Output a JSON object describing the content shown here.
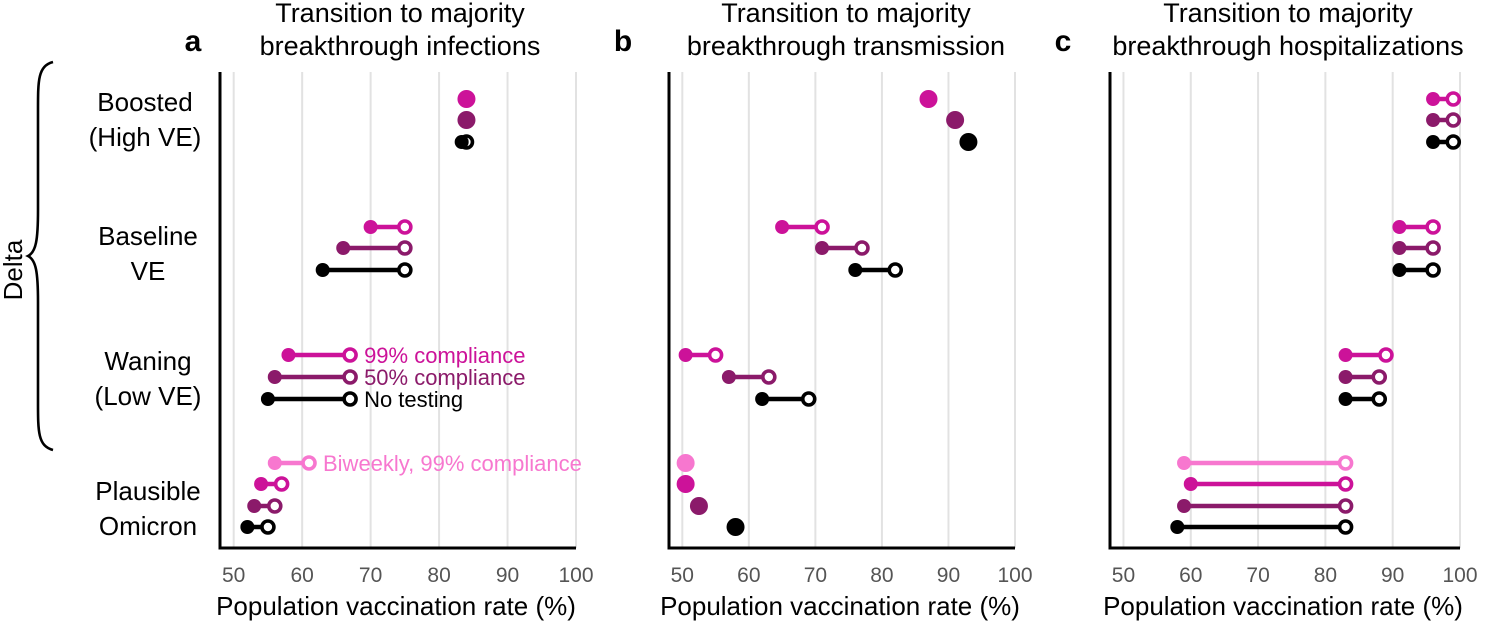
{
  "colors": {
    "c99": "#cc1299",
    "c50": "#8b1a6a",
    "c0": "#000000",
    "cbw": "#f777cf",
    "grid": "#e2e2e2",
    "tick": "#555555"
  },
  "group_axis_label": "Delta",
  "chart_data": [
    {
      "type": "dumbbell",
      "panel": "a",
      "title_line1": "Transition to majority",
      "title_line2": "breakthrough infections",
      "xlabel": "Population vaccination rate (%)",
      "xlim": [
        48,
        100
      ],
      "xticks": [
        50,
        60,
        70,
        80,
        90,
        100
      ],
      "groups": [
        {
          "label_line1": "Boosted",
          "label_line2": "(High VE)",
          "in_delta": true,
          "rows": [
            {
              "series": "99% compliance",
              "color": "c99",
              "from": 84,
              "to": 84
            },
            {
              "series": "50% compliance",
              "color": "c50",
              "from": 84,
              "to": 84
            },
            {
              "series": "No testing",
              "color": "c0",
              "from": 83.3,
              "to": 84
            }
          ]
        },
        {
          "label_line1": "Baseline",
          "label_line2": "VE",
          "in_delta": true,
          "rows": [
            {
              "series": "99% compliance",
              "color": "c99",
              "from": 70,
              "to": 75
            },
            {
              "series": "50% compliance",
              "color": "c50",
              "from": 66,
              "to": 75
            },
            {
              "series": "No testing",
              "color": "c0",
              "from": 63,
              "to": 75
            }
          ]
        },
        {
          "label_line1": "Waning",
          "label_line2": "(Low VE)",
          "in_delta": true,
          "rows": [
            {
              "series": "99% compliance",
              "color": "c99",
              "from": 58,
              "to": 67,
              "label": "99% compliance"
            },
            {
              "series": "50% compliance",
              "color": "c50",
              "from": 56,
              "to": 67,
              "label": "50% compliance"
            },
            {
              "series": "No testing",
              "color": "c0",
              "from": 55,
              "to": 67,
              "label": "No testing"
            }
          ]
        },
        {
          "label_line1": "Plausible",
          "label_line2": "Omicron",
          "in_delta": false,
          "rows": [
            {
              "series": "Biweekly, 99% compliance",
              "color": "cbw",
              "from": 56,
              "to": 61,
              "label": "Biweekly, 99% compliance"
            },
            {
              "series": "99% compliance",
              "color": "c99",
              "from": 54,
              "to": 57
            },
            {
              "series": "50% compliance",
              "color": "c50",
              "from": 53,
              "to": 56
            },
            {
              "series": "No testing",
              "color": "c0",
              "from": 52,
              "to": 55
            }
          ]
        }
      ]
    },
    {
      "type": "dumbbell",
      "panel": "b",
      "title_line1": "Transition to majority",
      "title_line2": "breakthrough transmission",
      "xlabel": "Population vaccination rate (%)",
      "xlim": [
        48,
        100
      ],
      "xticks": [
        50,
        60,
        70,
        80,
        90,
        100
      ],
      "groups": [
        {
          "rows": [
            {
              "series": "99% compliance",
              "color": "c99",
              "from": 87,
              "to": 87
            },
            {
              "series": "50% compliance",
              "color": "c50",
              "from": 91,
              "to": 91
            },
            {
              "series": "No testing",
              "color": "c0",
              "from": 93,
              "to": 93
            }
          ]
        },
        {
          "rows": [
            {
              "series": "99% compliance",
              "color": "c99",
              "from": 65,
              "to": 71
            },
            {
              "series": "50% compliance",
              "color": "c50",
              "from": 71,
              "to": 77
            },
            {
              "series": "No testing",
              "color": "c0",
              "from": 76,
              "to": 82
            }
          ]
        },
        {
          "rows": [
            {
              "series": "99% compliance",
              "color": "c99",
              "from": 50.5,
              "to": 55
            },
            {
              "series": "50% compliance",
              "color": "c50",
              "from": 57,
              "to": 63
            },
            {
              "series": "No testing",
              "color": "c0",
              "from": 62,
              "to": 69
            }
          ]
        },
        {
          "rows": [
            {
              "series": "Biweekly, 99% compliance",
              "color": "cbw",
              "from": 50.5,
              "to": 50.5
            },
            {
              "series": "99% compliance",
              "color": "c99",
              "from": 50.5,
              "to": 50.5
            },
            {
              "series": "50% compliance",
              "color": "c50",
              "from": 52.5,
              "to": 52.5
            },
            {
              "series": "No testing",
              "color": "c0",
              "from": 58,
              "to": 58
            }
          ]
        }
      ]
    },
    {
      "type": "dumbbell",
      "panel": "c",
      "title_line1": "Transition to majority",
      "title_line2": "breakthrough hospitalizations",
      "xlabel": "Population vaccination rate (%)",
      "xlim": [
        48,
        100
      ],
      "xticks": [
        50,
        60,
        70,
        80,
        90,
        100
      ],
      "groups": [
        {
          "rows": [
            {
              "series": "99% compliance",
              "color": "c99",
              "from": 96,
              "to": 99
            },
            {
              "series": "50% compliance",
              "color": "c50",
              "from": 96,
              "to": 99
            },
            {
              "series": "No testing",
              "color": "c0",
              "from": 96,
              "to": 99
            }
          ]
        },
        {
          "rows": [
            {
              "series": "99% compliance",
              "color": "c99",
              "from": 91,
              "to": 96
            },
            {
              "series": "50% compliance",
              "color": "c50",
              "from": 91,
              "to": 96
            },
            {
              "series": "No testing",
              "color": "c0",
              "from": 91,
              "to": 96
            }
          ]
        },
        {
          "rows": [
            {
              "series": "99% compliance",
              "color": "c99",
              "from": 83,
              "to": 89
            },
            {
              "series": "50% compliance",
              "color": "c50",
              "from": 83,
              "to": 88
            },
            {
              "series": "No testing",
              "color": "c0",
              "from": 83,
              "to": 88
            }
          ]
        },
        {
          "rows": [
            {
              "series": "Biweekly, 99% compliance",
              "color": "cbw",
              "from": 59,
              "to": 83
            },
            {
              "series": "99% compliance",
              "color": "c99",
              "from": 60,
              "to": 83
            },
            {
              "series": "50% compliance",
              "color": "c50",
              "from": 59,
              "to": 83
            },
            {
              "series": "No testing",
              "color": "c0",
              "from": 58,
              "to": 83
            }
          ]
        }
      ]
    }
  ]
}
